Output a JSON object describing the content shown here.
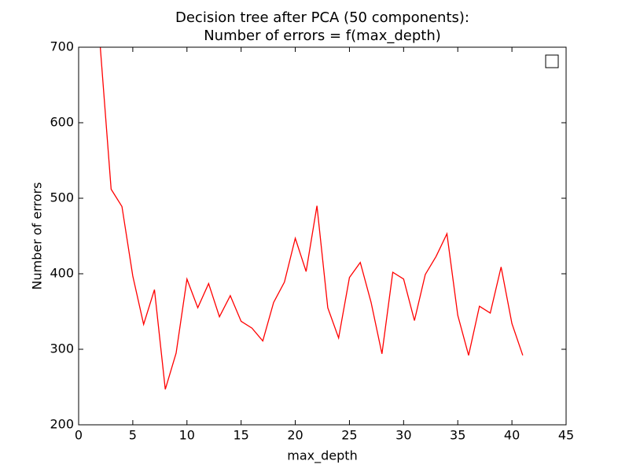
{
  "chart_data": {
    "type": "line",
    "title": "Decision tree after PCA (50 components):",
    "subtitle": "Number of errors = f(max_depth)",
    "x_label": "max_depth",
    "y_label": "Number of errors",
    "x": [
      2,
      3,
      4,
      5,
      6,
      7,
      8,
      9,
      10,
      11,
      12,
      13,
      14,
      15,
      16,
      17,
      18,
      19,
      20,
      21,
      22,
      23,
      24,
      25,
      26,
      27,
      28,
      29,
      30,
      31,
      32,
      33,
      34,
      35,
      36,
      37,
      38,
      39,
      40,
      41
    ],
    "series": [
      {
        "color": "#ff0000",
        "values": [
          700,
          512,
          489,
          397,
          333,
          379,
          247,
          295,
          393,
          355,
          387,
          343,
          371,
          337,
          328,
          311,
          362,
          389,
          447,
          403,
          490,
          355,
          315,
          395,
          415,
          362,
          294,
          402,
          393,
          338,
          399,
          423,
          453,
          345,
          292,
          357,
          348,
          409,
          334,
          292
        ]
      }
    ],
    "xlim": [
      0,
      45
    ],
    "xticks": [
      0,
      5,
      10,
      15,
      20,
      25,
      30,
      35,
      40,
      45
    ],
    "ylim": [
      200,
      700
    ],
    "yticks": [
      200,
      300,
      400,
      500,
      600,
      700
    ],
    "grid": false,
    "legend": "upper right"
  }
}
